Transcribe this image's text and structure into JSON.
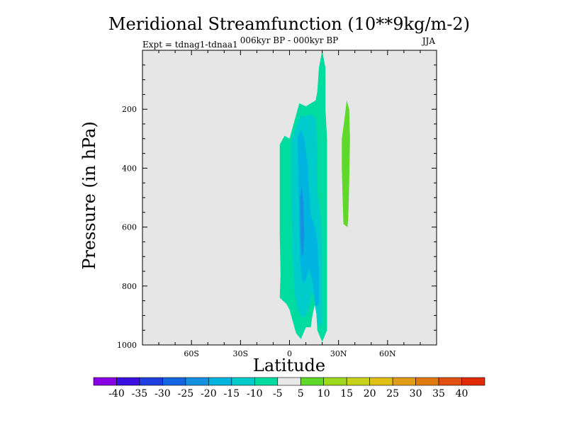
{
  "chart_data": {
    "type": "heatmap",
    "title": "Meridional Streamfunction (10**9kg/m-2)",
    "subtitle": "006kyr BP - 000kyr BP",
    "left_label": "Expt = tdnag1-tdnaa1",
    "right_label": "JJA",
    "xlabel": "Latitude",
    "ylabel": "Pressure (in hPa)",
    "xlim": [
      -90,
      90
    ],
    "ylim": [
      1000,
      0
    ],
    "x_ticks": [
      {
        "value": -60,
        "label": "60S"
      },
      {
        "value": -30,
        "label": "30S"
      },
      {
        "value": 0,
        "label": "0"
      },
      {
        "value": 30,
        "label": "30N"
      },
      {
        "value": 60,
        "label": "60N"
      }
    ],
    "y_ticks": [
      {
        "value": 200,
        "label": "200"
      },
      {
        "value": 400,
        "label": "400"
      },
      {
        "value": 600,
        "label": "600"
      },
      {
        "value": 800,
        "label": "800"
      },
      {
        "value": 1000,
        "label": "1000"
      }
    ],
    "colorbar": {
      "levels": [
        -40,
        -35,
        -30,
        -25,
        -20,
        -15,
        -10,
        -5,
        5,
        10,
        15,
        20,
        25,
        30,
        35,
        40
      ],
      "level_labels": [
        "-40",
        "-35",
        "-30",
        "-25",
        "-20",
        "-15",
        "-10",
        "-5",
        "5",
        "10",
        "15",
        "20",
        "25",
        "30",
        "35",
        "40"
      ],
      "colors": [
        "#8a00e6",
        "#3a0fe0",
        "#1f3fe0",
        "#1565e0",
        "#1690e0",
        "#00b4e0",
        "#00cccc",
        "#00dca0",
        "#e8e8e8",
        "#5fd82a",
        "#9ed81c",
        "#c8d21c",
        "#e0c014",
        "#e09c14",
        "#e07810",
        "#e05010",
        "#e02a08"
      ]
    },
    "background_color": "#e6e6e6",
    "regions": [
      {
        "name": "negative-cell-outer",
        "value_range": [
          -10,
          -5
        ],
        "color": "#00dca0",
        "outline": [
          [
            -6,
            840
          ],
          [
            -5.5,
            760
          ],
          [
            -6,
            620
          ],
          [
            -6,
            470
          ],
          [
            -6,
            320
          ],
          [
            -3,
            290
          ],
          [
            0,
            300
          ],
          [
            3,
            240
          ],
          [
            6,
            180
          ],
          [
            10,
            190
          ],
          [
            13,
            180
          ],
          [
            16,
            170
          ],
          [
            17,
            140
          ],
          [
            18,
            60
          ],
          [
            20,
            0
          ],
          [
            22,
            60
          ],
          [
            22,
            200
          ],
          [
            23,
            300
          ],
          [
            23,
            800
          ],
          [
            23,
            950
          ],
          [
            20,
            990
          ],
          [
            17,
            950
          ],
          [
            16,
            850
          ],
          [
            14,
            900
          ],
          [
            13,
            940
          ],
          [
            10,
            940
          ],
          [
            7,
            980
          ],
          [
            4,
            960
          ],
          [
            2,
            920
          ],
          [
            0,
            880
          ],
          [
            -2,
            860
          ],
          [
            -4,
            850
          ]
        ]
      },
      {
        "name": "negative-cell-mid",
        "value_range": [
          -15,
          -10
        ],
        "color": "#00cccc",
        "outline": [
          [
            1,
            310
          ],
          [
            4,
            260
          ],
          [
            7,
            220
          ],
          [
            10,
            225
          ],
          [
            13,
            215
          ],
          [
            16,
            230
          ],
          [
            17,
            330
          ],
          [
            17,
            480
          ],
          [
            19,
            560
          ],
          [
            20,
            640
          ],
          [
            20,
            800
          ],
          [
            20,
            930
          ],
          [
            18,
            940
          ],
          [
            16,
            880
          ],
          [
            14,
            820
          ],
          [
            12,
            870
          ],
          [
            10,
            900
          ],
          [
            8,
            910
          ],
          [
            5,
            880
          ],
          [
            3,
            820
          ],
          [
            2,
            700
          ],
          [
            1.5,
            580
          ],
          [
            1,
            450
          ]
        ]
      },
      {
        "name": "negative-cell-inner",
        "value_range": [
          -20,
          -15
        ],
        "color": "#00b4e0",
        "outline": [
          [
            5,
            300
          ],
          [
            7,
            270
          ],
          [
            9,
            300
          ],
          [
            11,
            380
          ],
          [
            12,
            480
          ],
          [
            13,
            560
          ],
          [
            15,
            590
          ],
          [
            17,
            650
          ],
          [
            18,
            760
          ],
          [
            18,
            860
          ],
          [
            16,
            870
          ],
          [
            14,
            780
          ],
          [
            12,
            740
          ],
          [
            10,
            780
          ],
          [
            8,
            790
          ],
          [
            6.5,
            720
          ],
          [
            6,
            600
          ],
          [
            5.5,
            470
          ]
        ]
      },
      {
        "name": "negative-cell-core",
        "value_range": [
          -25,
          -20
        ],
        "color": "#1690e0",
        "outline": [
          [
            6.5,
            500
          ],
          [
            7.5,
            460
          ],
          [
            8.5,
            520
          ],
          [
            9,
            620
          ],
          [
            8.5,
            690
          ],
          [
            7.5,
            700
          ],
          [
            6.8,
            640
          ]
        ]
      },
      {
        "name": "positive-cell",
        "value_range": [
          5,
          10
        ],
        "color": "#5fd82a",
        "outline": [
          [
            32,
            300
          ],
          [
            33.5,
            240
          ],
          [
            35,
            170
          ],
          [
            36.5,
            200
          ],
          [
            37,
            300
          ],
          [
            36.5,
            450
          ],
          [
            36,
            560
          ],
          [
            35.5,
            600
          ],
          [
            33,
            590
          ],
          [
            32.5,
            500
          ],
          [
            32,
            400
          ]
        ]
      }
    ]
  }
}
